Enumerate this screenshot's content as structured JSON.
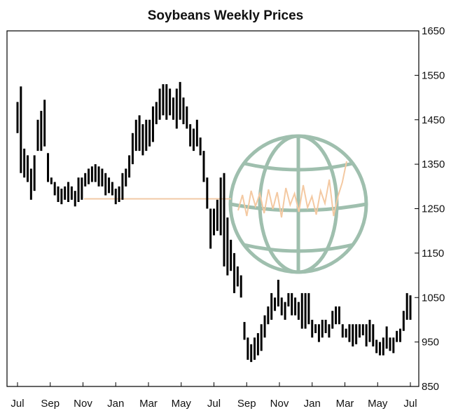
{
  "chart_data": {
    "type": "bar",
    "subtype": "range-bar",
    "title": "Soybeans Weekly Prices",
    "xlabel": "",
    "ylabel": "",
    "ylim": [
      850,
      1650
    ],
    "yticks": [
      850,
      950,
      1050,
      1150,
      1250,
      1350,
      1450,
      1550,
      1650
    ],
    "y_axis_side": "right",
    "grid": false,
    "legend": "none",
    "xticks": [
      "Jul",
      "Sep",
      "Nov",
      "Jan",
      "Mar",
      "May",
      "Jul",
      "Sep",
      "Nov",
      "Jan",
      "Mar",
      "May",
      "Jul"
    ],
    "bar_color": "#000000",
    "reference_line": {
      "value": 1272,
      "color": "#f2c9a6"
    },
    "watermark": {
      "name": "globe-logo",
      "color": "#9fbfae",
      "trace_color": "#f4c9a2"
    },
    "series": [
      {
        "ranges": [
          [
            1420,
            1490
          ],
          [
            1330,
            1525
          ],
          [
            1320,
            1385
          ],
          [
            1310,
            1370
          ],
          [
            1270,
            1340
          ],
          [
            1290,
            1370
          ],
          [
            1380,
            1450
          ],
          [
            1380,
            1470
          ],
          [
            1390,
            1495
          ],
          [
            1310,
            1375
          ],
          [
            1305,
            1320
          ],
          [
            1280,
            1310
          ],
          [
            1265,
            1300
          ],
          [
            1260,
            1295
          ],
          [
            1270,
            1300
          ],
          [
            1265,
            1310
          ],
          [
            1270,
            1300
          ],
          [
            1255,
            1290
          ],
          [
            1265,
            1320
          ],
          [
            1270,
            1320
          ],
          [
            1300,
            1330
          ],
          [
            1305,
            1340
          ],
          [
            1310,
            1345
          ],
          [
            1310,
            1350
          ],
          [
            1300,
            1345
          ],
          [
            1300,
            1340
          ],
          [
            1280,
            1330
          ],
          [
            1285,
            1320
          ],
          [
            1280,
            1310
          ],
          [
            1260,
            1295
          ],
          [
            1265,
            1300
          ],
          [
            1270,
            1330
          ],
          [
            1300,
            1340
          ],
          [
            1320,
            1370
          ],
          [
            1350,
            1420
          ],
          [
            1380,
            1450
          ],
          [
            1380,
            1460
          ],
          [
            1370,
            1440
          ],
          [
            1380,
            1450
          ],
          [
            1390,
            1450
          ],
          [
            1400,
            1480
          ],
          [
            1440,
            1490
          ],
          [
            1450,
            1520
          ],
          [
            1460,
            1530
          ],
          [
            1450,
            1530
          ],
          [
            1460,
            1520
          ],
          [
            1450,
            1500
          ],
          [
            1430,
            1520
          ],
          [
            1450,
            1535
          ],
          [
            1440,
            1500
          ],
          [
            1430,
            1480
          ],
          [
            1390,
            1440
          ],
          [
            1380,
            1430
          ],
          [
            1390,
            1450
          ],
          [
            1370,
            1410
          ],
          [
            1310,
            1380
          ],
          [
            1250,
            1320
          ],
          [
            1160,
            1250
          ],
          [
            1190,
            1250
          ],
          [
            1200,
            1270
          ],
          [
            1190,
            1320
          ],
          [
            1120,
            1330
          ],
          [
            1100,
            1230
          ],
          [
            1110,
            1180
          ],
          [
            1060,
            1150
          ],
          [
            1075,
            1120
          ],
          [
            1050,
            1100
          ],
          [
            955,
            995
          ],
          [
            910,
            960
          ],
          [
            905,
            945
          ],
          [
            910,
            960
          ],
          [
            920,
            970
          ],
          [
            930,
            990
          ],
          [
            960,
            1010
          ],
          [
            990,
            1030
          ],
          [
            1000,
            1060
          ],
          [
            1020,
            1050
          ],
          [
            1030,
            1090
          ],
          [
            1010,
            1050
          ],
          [
            1000,
            1040
          ],
          [
            1030,
            1060
          ],
          [
            1010,
            1060
          ],
          [
            1010,
            1050
          ],
          [
            1000,
            1040
          ],
          [
            980,
            1060
          ],
          [
            980,
            1060
          ],
          [
            990,
            1060
          ],
          [
            960,
            1000
          ],
          [
            970,
            990
          ],
          [
            950,
            990
          ],
          [
            960,
            1000
          ],
          [
            970,
            1000
          ],
          [
            960,
            990
          ],
          [
            980,
            1020
          ],
          [
            990,
            1030
          ],
          [
            990,
            1030
          ],
          [
            960,
            990
          ],
          [
            960,
            980
          ],
          [
            950,
            990
          ],
          [
            940,
            990
          ],
          [
            945,
            990
          ],
          [
            960,
            990
          ],
          [
            965,
            990
          ],
          [
            940,
            990
          ],
          [
            950,
            1000
          ],
          [
            940,
            990
          ],
          [
            925,
            955
          ],
          [
            920,
            950
          ],
          [
            920,
            960
          ],
          [
            935,
            985
          ],
          [
            930,
            960
          ],
          [
            925,
            960
          ],
          [
            950,
            975
          ],
          [
            950,
            980
          ],
          [
            975,
            1020
          ],
          [
            1000,
            1060
          ],
          [
            1000,
            1055
          ]
        ]
      }
    ]
  }
}
